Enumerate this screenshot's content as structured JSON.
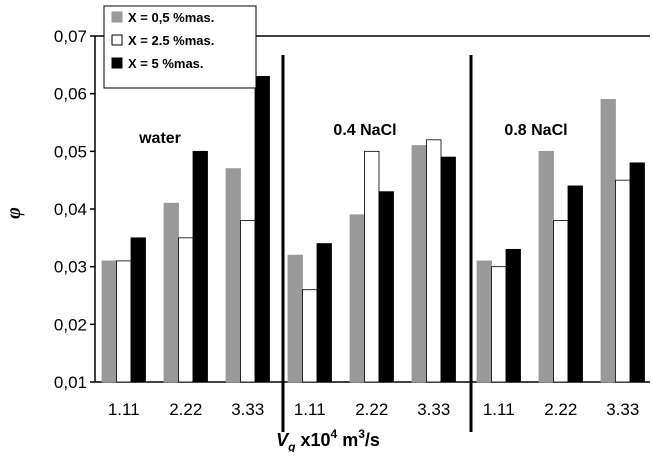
{
  "chart_data": {
    "type": "bar",
    "title": "",
    "ylabel": "φ",
    "xlabel": {
      "v": "V",
      "sub": "g",
      "mid": " x10",
      "sup1": "4",
      "unit": " m",
      "sup2": "3",
      "end": "/s"
    },
    "ylim": [
      0.01,
      0.07
    ],
    "yticks": [
      "0,01",
      "0,02",
      "0,03",
      "0,04",
      "0,05",
      "0,06",
      "0,07"
    ],
    "grid": false,
    "legend_position": "top-left",
    "colors": {
      "X = 0,5 %mas.": "#999999",
      "X = 2.5 %mas.": "#ffffff",
      "X = 5  %mas.": "#000000"
    },
    "groups": [
      {
        "label": "water",
        "categories": [
          "1.11",
          "2.22",
          "3.33"
        ]
      },
      {
        "label": "0.4 NaCl",
        "categories": [
          "1.11",
          "2.22",
          "3.33"
        ]
      },
      {
        "label": "0.8 NaCl",
        "categories": [
          "1.11",
          "2.22",
          "3.33"
        ]
      }
    ],
    "series": [
      {
        "name": "X = 0,5 %mas.",
        "values": [
          0.031,
          0.041,
          0.047,
          0.032,
          0.039,
          0.051,
          0.031,
          0.05,
          0.059
        ]
      },
      {
        "name": "X = 2.5 %mas.",
        "values": [
          0.031,
          0.035,
          0.038,
          0.026,
          0.05,
          0.052,
          0.03,
          0.038,
          0.045
        ]
      },
      {
        "name": "X = 5  %mas.",
        "values": [
          0.035,
          0.05,
          0.063,
          0.034,
          0.043,
          0.049,
          0.033,
          0.044,
          0.048
        ]
      }
    ]
  }
}
